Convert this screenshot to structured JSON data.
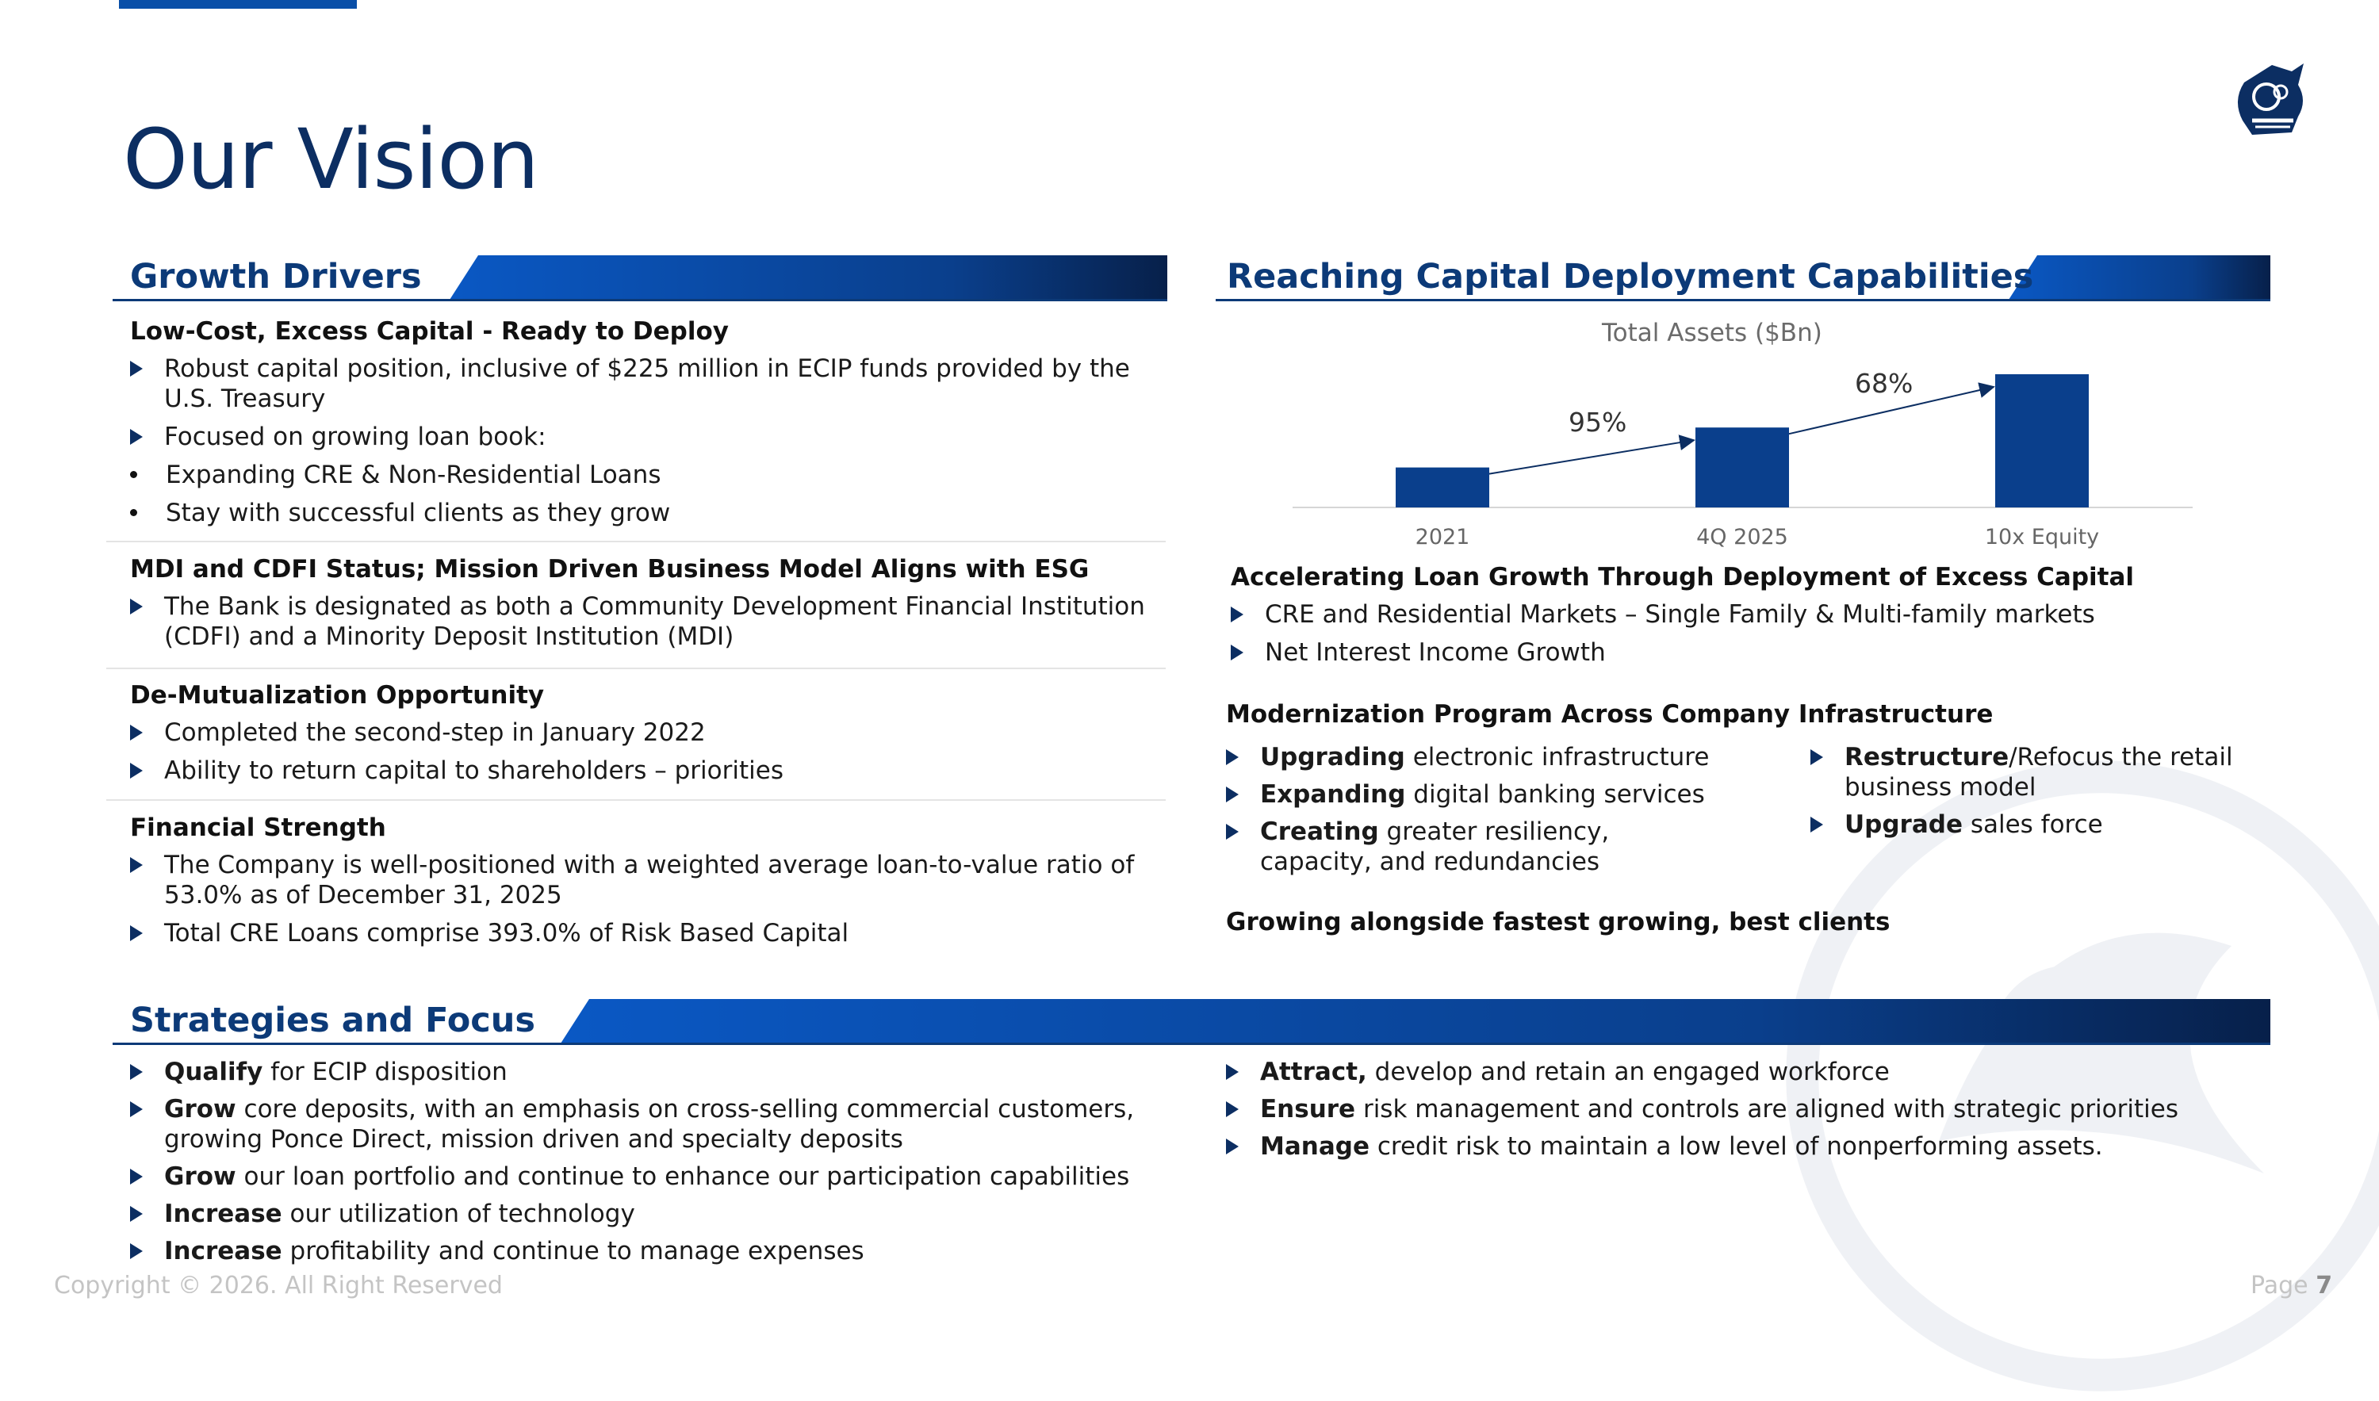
{
  "page": {
    "title": "Our Vision",
    "footer": "Copyright © 2026. All Right Reserved",
    "page_label": "Page",
    "page_number": "7"
  },
  "left": {
    "header": "Growth Drivers",
    "groups": [
      {
        "title": "Low-Cost, Excess Capital - Ready to Deploy",
        "items": [
          "Robust capital position, inclusive of $225 million in ECIP funds provided by the U.S. Treasury",
          "Focused on growing loan book:"
        ],
        "bullets": [
          "Expanding CRE & Non-Residential Loans",
          "Stay with successful clients as they grow"
        ]
      },
      {
        "title": "MDI and CDFI Status; Mission Driven Business Model Aligns with ESG",
        "items": [
          "The Bank is designated as both a Community Development Financial Institution (CDFI) and a Minority Deposit Institution (MDI)"
        ]
      },
      {
        "title": "De-Mutualization Opportunity",
        "items": [
          "Completed the second-step in January 2022",
          "Ability to return capital to shareholders – priorities"
        ]
      },
      {
        "title": "Financial Strength",
        "items": [
          "The Company is well-positioned with a weighted average loan-to-value ratio of 53.0% as of December 31, 2025",
          "Total CRE Loans comprise 393.0% of Risk Based Capital"
        ]
      }
    ]
  },
  "right": {
    "header": "Reaching Capital Deployment Capabilities",
    "accel": {
      "title": "Accelerating Loan Growth Through Deployment of Excess Capital",
      "items": [
        "CRE and Residential Markets – Single Family & Multi-family markets",
        "Net Interest Income Growth"
      ]
    },
    "modern": {
      "title": "Modernization Program Across Company Infrastructure",
      "col1": [
        {
          "bold": "Upgrading",
          "rest": " electronic infrastructure"
        },
        {
          "bold": "Expanding",
          "rest": " digital banking services"
        },
        {
          "bold": "Creating",
          "rest": " greater resiliency, capacity, and redundancies"
        }
      ],
      "col2": [
        {
          "bold": "Restructure",
          "rest": "/Refocus the retail business model"
        },
        {
          "bold": "Upgrade",
          "rest": " sales force"
        }
      ]
    },
    "growing": "Growing alongside fastest growing, best clients"
  },
  "chart_data": {
    "type": "bar",
    "title": "Total Assets ($Bn)",
    "categories": [
      "2021",
      "4Q 2025",
      "10x Equity"
    ],
    "values": [
      0.3,
      0.6,
      1.0
    ],
    "growth_labels": [
      "95%",
      "68%"
    ],
    "bar_color": "#0a3f8c"
  },
  "strategies": {
    "header": "Strategies and Focus",
    "left": [
      {
        "bold": "Qualify",
        "rest": " for ECIP disposition"
      },
      {
        "bold": "Grow",
        "rest": " core deposits, with an emphasis on cross-selling commercial customers, growing Ponce Direct, mission driven and specialty deposits"
      },
      {
        "bold": "Grow",
        "rest": " our loan portfolio and continue to enhance our participation capabilities"
      },
      {
        "bold": "Increase",
        "rest": " our utilization of technology"
      },
      {
        "bold": "Increase",
        "rest": " profitability and continue to manage expenses"
      }
    ],
    "right": [
      {
        "bold": "Attract,",
        "rest": " develop and retain an engaged workforce"
      },
      {
        "bold": "Ensure",
        "rest": " risk management and controls are aligned with strategic priorities"
      },
      {
        "bold": "Manage",
        "rest": " credit risk to maintain a low level of nonperforming assets."
      }
    ]
  }
}
